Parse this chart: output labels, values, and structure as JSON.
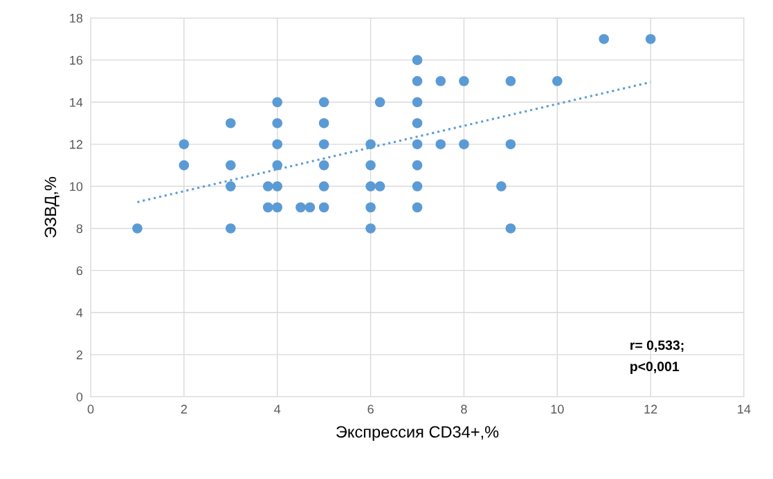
{
  "chart_data": {
    "type": "scatter",
    "xlabel": "Экспрессия CD34+,%",
    "ylabel": "ЭЗВД,%",
    "xlim": [
      0,
      14
    ],
    "xticks": [
      0,
      2,
      4,
      6,
      8,
      10,
      12,
      14
    ],
    "ylim": [
      0,
      18
    ],
    "yticks": [
      0,
      2,
      4,
      6,
      8,
      10,
      12,
      14,
      16,
      18
    ],
    "grid": true,
    "legend": false,
    "series": [
      {
        "color": "#5b9bd5",
        "marker": "circle",
        "x": [
          1,
          2,
          2,
          3,
          3,
          3,
          3,
          3.8,
          3.8,
          4,
          4,
          4,
          4,
          4,
          4,
          4.5,
          4.7,
          5,
          5,
          5,
          5,
          5,
          5,
          6,
          6,
          6,
          6,
          6,
          6.2,
          6.2,
          7,
          7,
          7,
          7,
          7,
          7,
          7,
          7,
          7.5,
          7.5,
          8,
          8,
          8.8,
          9,
          9,
          9,
          10,
          11,
          12
        ],
        "values": [
          8,
          12,
          11,
          13,
          11,
          10,
          8,
          10,
          9,
          14,
          13,
          12,
          11,
          10,
          9,
          9,
          9,
          14,
          13,
          12,
          11,
          10,
          9,
          12,
          11,
          10,
          9,
          8,
          14,
          10,
          16,
          15,
          14,
          13,
          12,
          11,
          10,
          9,
          15,
          12,
          15,
          12,
          10,
          15,
          12,
          8,
          15,
          17,
          17
        ]
      },
      {
        "type": "line",
        "color": "#5b9bd5",
        "line_style": "dotted",
        "x": [
          1,
          12
        ],
        "values": [
          9.25,
          14.95
        ]
      }
    ],
    "annotations": [
      "r= 0,533;\np<0,001"
    ]
  }
}
